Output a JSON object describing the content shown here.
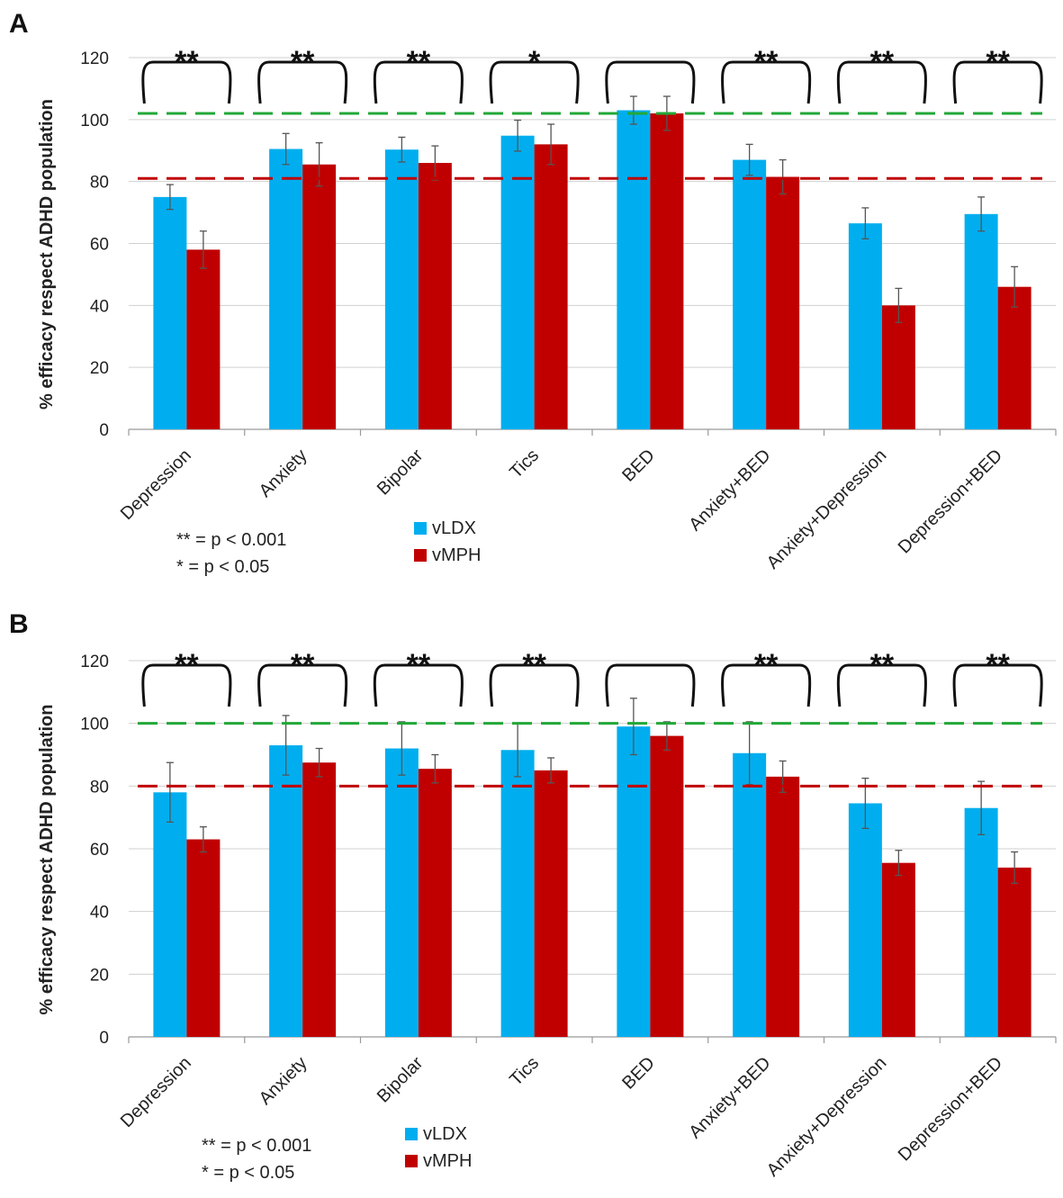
{
  "chart_data": [
    {
      "panel": "A",
      "type": "bar",
      "ylabel": "% efficacy respect ADHD population",
      "ylim": [
        0,
        120
      ],
      "yticks": [
        "0",
        "20",
        "40",
        "60",
        "80",
        "100",
        "120"
      ],
      "categories": [
        "Depression",
        "Anxiety",
        "Bipolar",
        "Tics",
        "BED",
        "Anxiety+BED",
        "Anxiety+Depression",
        "Depression+BED"
      ],
      "series": [
        {
          "name": "vLDX",
          "color": "#00aeef",
          "values": [
            75,
            90.5,
            90.3,
            94.8,
            103,
            87,
            66.5,
            69.5
          ],
          "errors": [
            4,
            5,
            4,
            5,
            4.5,
            5,
            5,
            5.5
          ]
        },
        {
          "name": "vMPH",
          "color": "#c00000",
          "values": [
            58,
            85.5,
            86,
            92,
            102,
            81.5,
            40,
            46
          ],
          "errors": [
            6,
            7,
            5.5,
            6.5,
            5.5,
            5.5,
            5.5,
            6.5
          ]
        }
      ],
      "reference_lines": [
        {
          "name": "vLDX reference",
          "value": 102,
          "color": "#22a838"
        },
        {
          "name": "vMPH reference",
          "value": 81,
          "color": "#c00000"
        }
      ],
      "significance": [
        "**",
        "**",
        "**",
        "*",
        "",
        "**",
        "**",
        "**"
      ],
      "notes": [
        "** = p < 0.001",
        "* = p < 0.05"
      ]
    },
    {
      "panel": "B",
      "type": "bar",
      "ylabel": "% efficacy respect ADHD population",
      "ylim": [
        0,
        120
      ],
      "yticks": [
        "0",
        "20",
        "40",
        "60",
        "80",
        "100",
        "120"
      ],
      "categories": [
        "Depression",
        "Anxiety",
        "Bipolar",
        "Tics",
        "BED",
        "Anxiety+BED",
        "Anxiety+Depression",
        "Depression+BED"
      ],
      "series": [
        {
          "name": "vLDX",
          "color": "#00aeef",
          "values": [
            78,
            93,
            92,
            91.5,
            99,
            90.5,
            74.5,
            73
          ],
          "errors": [
            9.5,
            9.5,
            8.5,
            8.5,
            9,
            10,
            8,
            8.5
          ]
        },
        {
          "name": "vMPH",
          "color": "#c00000",
          "values": [
            63,
            87.5,
            85.5,
            85,
            96,
            83,
            55.5,
            54
          ],
          "errors": [
            4,
            4.5,
            4.5,
            4,
            4.5,
            5,
            4,
            5
          ]
        }
      ],
      "reference_lines": [
        {
          "name": "vLDX reference",
          "value": 100,
          "color": "#22a838"
        },
        {
          "name": "vMPH reference",
          "value": 80,
          "color": "#c00000"
        }
      ],
      "significance": [
        "**",
        "**",
        "**",
        "**",
        "",
        "**",
        "**",
        "**"
      ],
      "notes": [
        "** = p < 0.001",
        "* = p < 0.05"
      ]
    }
  ]
}
